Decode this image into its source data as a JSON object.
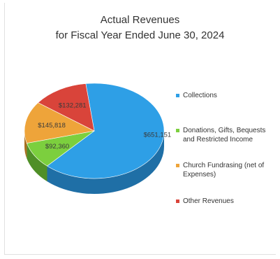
{
  "title_line1": "Actual Revenues",
  "title_line2": "for Fiscal Year Ended June 30, 2024",
  "chart_data": {
    "type": "pie",
    "title": "Actual Revenues for Fiscal Year Ended June 30, 2024",
    "style": "3d",
    "legend_position": "right",
    "categories": [
      "Collections",
      "Donations, Gifts, Bequests and Restricted Income",
      "Church Fundrasing (net of Expenses)",
      "Other Revenues"
    ],
    "values": [
      651151,
      92360,
      145818,
      132281
    ],
    "data_labels": [
      "$651,151",
      "$92,360",
      "$145,818",
      "$132,281"
    ],
    "colors": [
      "#2e9fe6",
      "#7ccf3e",
      "#eea43a",
      "#d9443a"
    ],
    "side_colors": [
      "#1f6fa6",
      "#4f8f27",
      "#a86f1f",
      "#983027"
    ]
  }
}
